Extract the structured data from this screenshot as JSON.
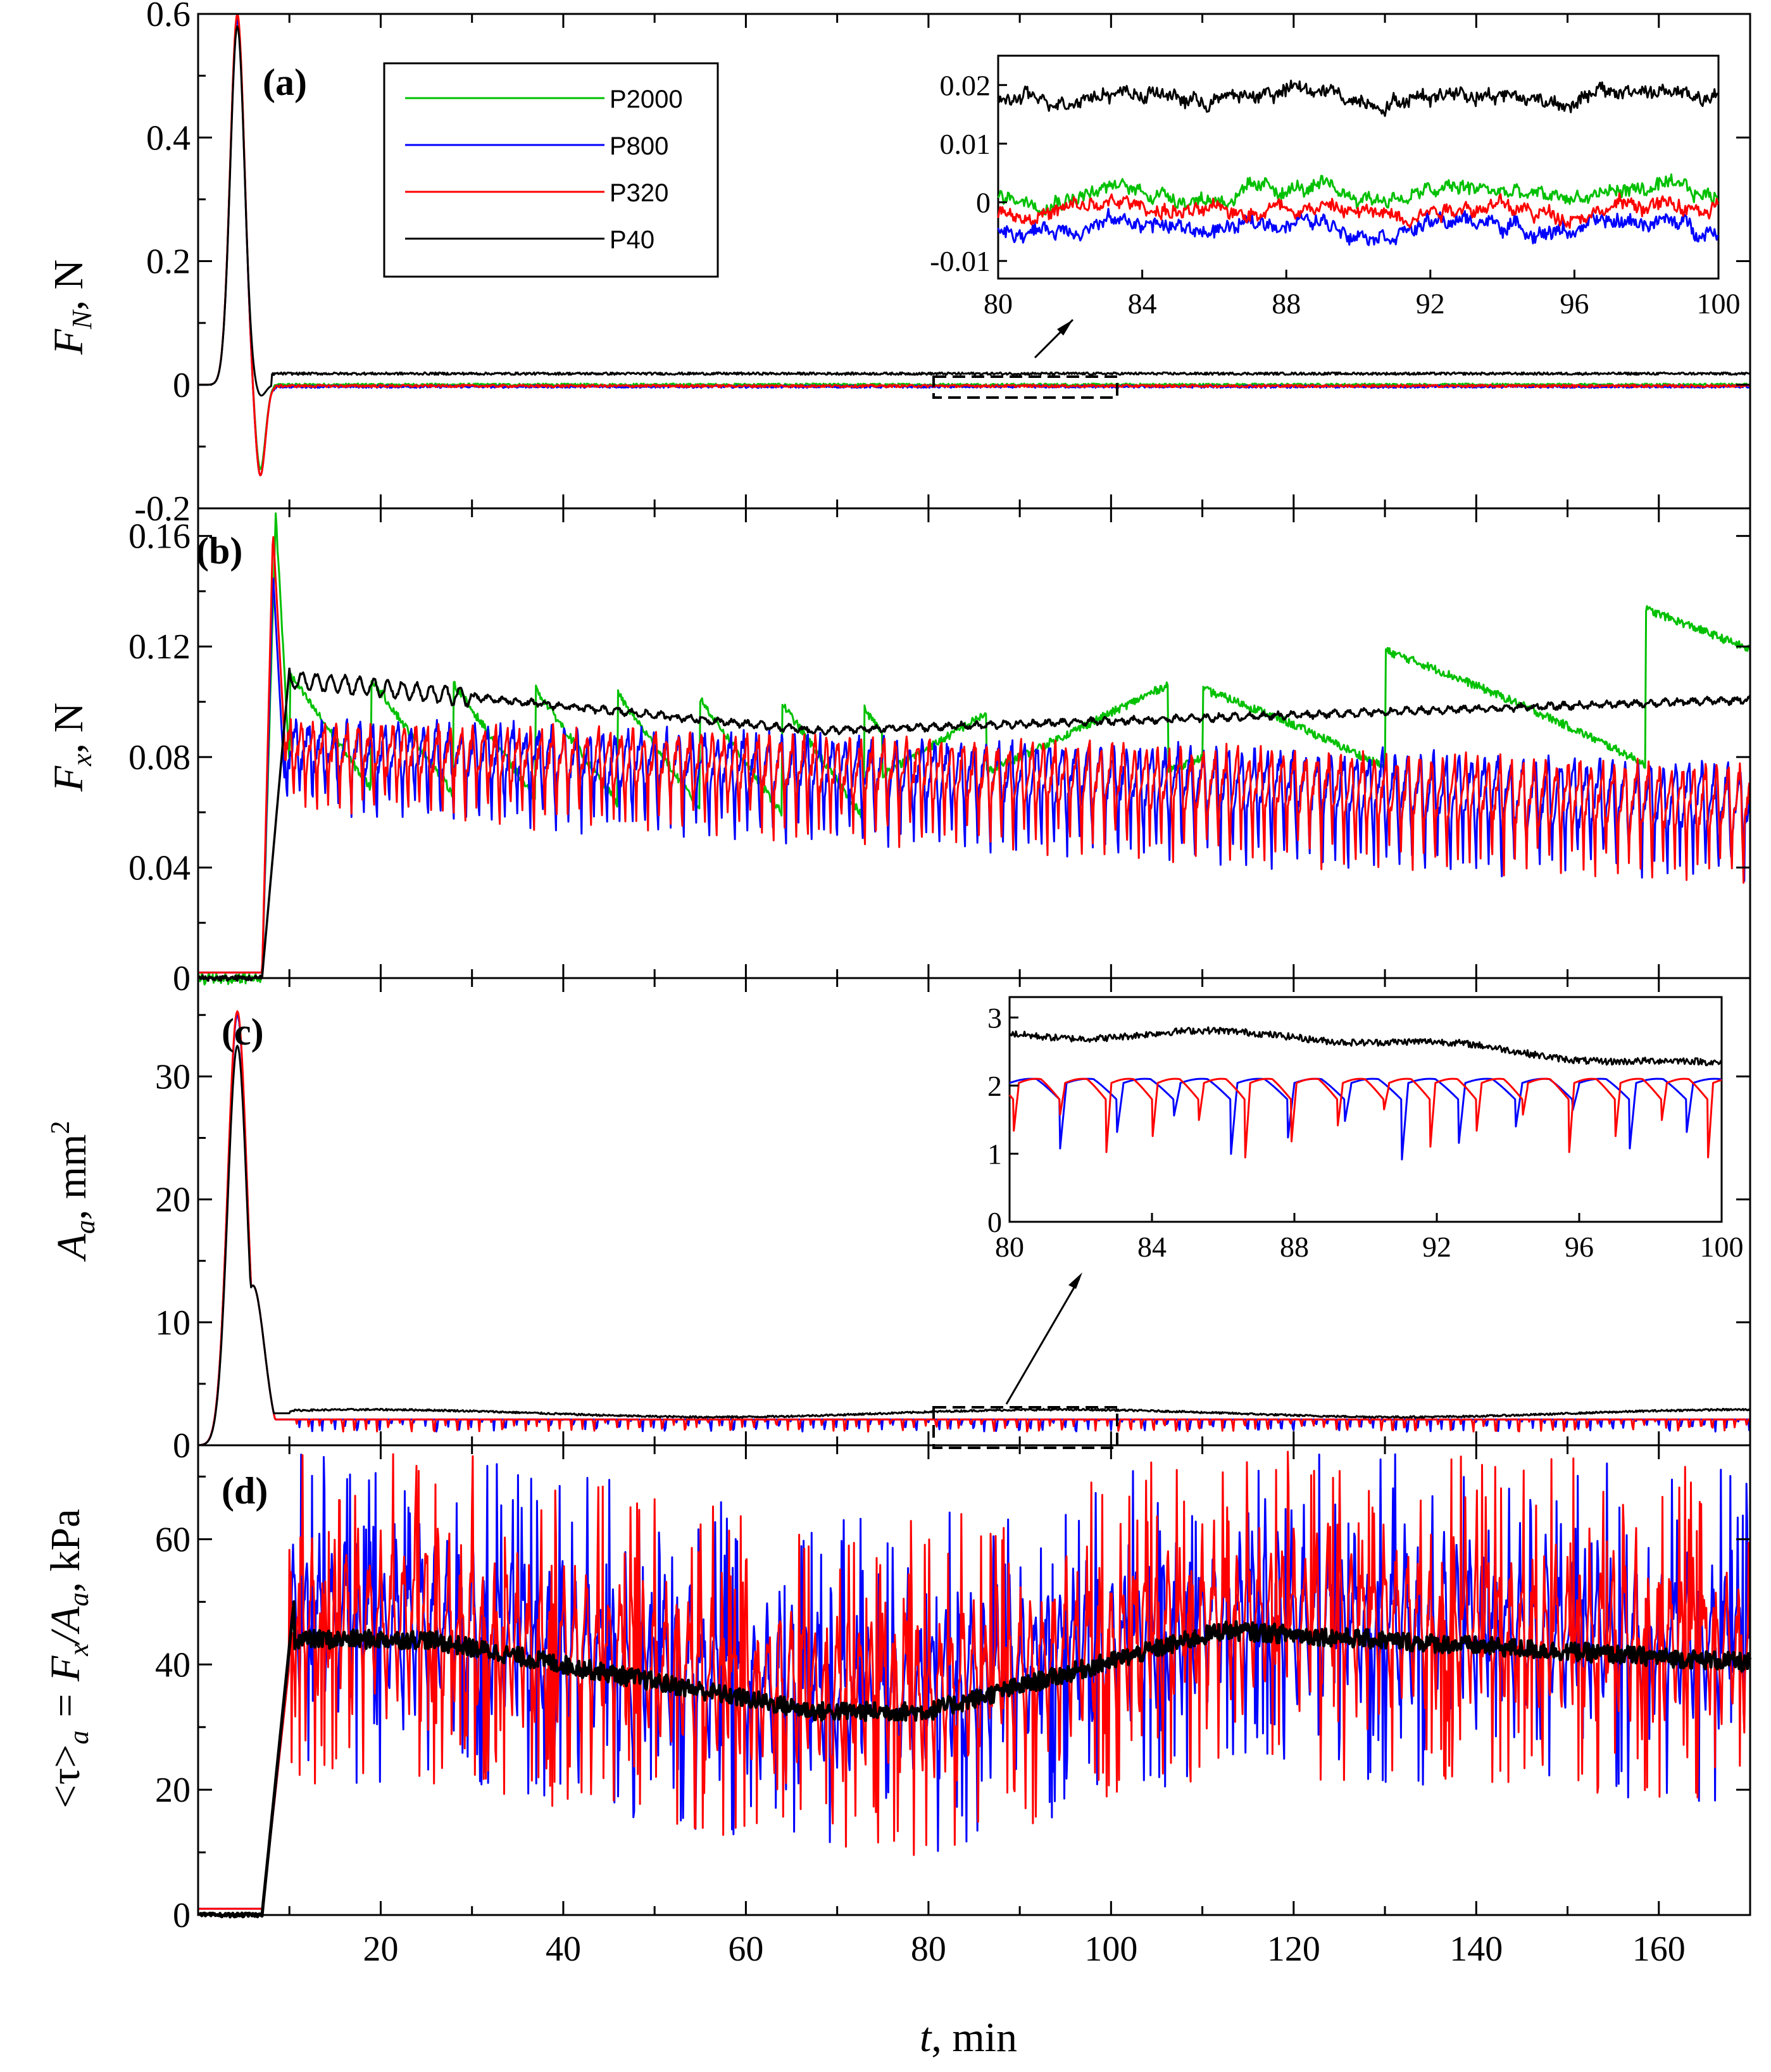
{
  "chart_data": [
    {
      "id": "a",
      "type": "line",
      "panel_label": "(a)",
      "ylabel_main": "F",
      "ylabel_sub": "N",
      "ylabel_unit": ", N",
      "ylim": [
        -0.2,
        0.6
      ],
      "yticks": [
        -0.2,
        0,
        0.2,
        0.4,
        0.6
      ],
      "ytick_labels": [
        "-0.2",
        "0",
        "0.2",
        "0.4",
        "0.6"
      ],
      "xlim": [
        0,
        170
      ],
      "series": [
        {
          "name": "P2000",
          "color": "#00c000",
          "level": 0.0,
          "peak": 0.595,
          "dip": -0.14
        },
        {
          "name": "P800",
          "color": "#0000ff",
          "level": -0.003,
          "peak": 0.59,
          "dip": -0.15
        },
        {
          "name": "P320",
          "color": "#ff0000",
          "level": -0.002,
          "peak": 0.6,
          "dip": -0.15
        },
        {
          "name": "P40",
          "color": "#000000",
          "level": 0.018,
          "peak": 0.58,
          "dip": -0.02
        }
      ],
      "inset": {
        "xlim": [
          80,
          100
        ],
        "ylim": [
          -0.013,
          0.025
        ],
        "xticks": [
          80,
          84,
          88,
          92,
          96,
          100
        ],
        "xtick_labels": [
          "80",
          "84",
          "88",
          "92",
          "96",
          "100"
        ],
        "yticks": [
          -0.01,
          0,
          0.01,
          0.02
        ],
        "ytick_labels": [
          "-0.01",
          "0",
          "0.01",
          "0.02"
        ]
      }
    },
    {
      "id": "b",
      "type": "line",
      "panel_label": "(b)",
      "ylabel_main": "F",
      "ylabel_sub": "x",
      "ylabel_unit": ", N",
      "ylim": [
        0,
        0.17
      ],
      "yticks": [
        0,
        0.04,
        0.08,
        0.12,
        0.16
      ],
      "ytick_labels": [
        "0",
        "0.04",
        "0.08",
        "0.12",
        "0.16"
      ],
      "xlim": [
        0,
        170
      ],
      "series": [
        {
          "name": "P2000",
          "color": "#00c000",
          "peak": 0.168
        },
        {
          "name": "P800",
          "color": "#0000ff",
          "peak": 0.147
        },
        {
          "name": "P320",
          "color": "#ff0000",
          "peak": 0.162
        },
        {
          "name": "P40",
          "color": "#000000",
          "peak": 0.112
        }
      ]
    },
    {
      "id": "c",
      "type": "line",
      "panel_label": "(c)",
      "ylabel_main": "A",
      "ylabel_sub": "a",
      "ylabel_unit": ", mm",
      "ylabel_sup": "2",
      "ylim": [
        0,
        38
      ],
      "yticks": [
        0,
        10,
        20,
        30
      ],
      "ytick_labels": [
        "0",
        "10",
        "20",
        "30"
      ],
      "xlim": [
        0,
        170
      ],
      "series": [
        {
          "name": "P800",
          "color": "#0000ff",
          "peak": 35
        },
        {
          "name": "P320",
          "color": "#ff0000",
          "peak": 35.3
        },
        {
          "name": "P40",
          "color": "#000000",
          "peak": 32.5
        }
      ],
      "inset": {
        "xlim": [
          80,
          100
        ],
        "ylim": [
          0,
          3.3
        ],
        "xticks": [
          80,
          84,
          88,
          92,
          96,
          100
        ],
        "xtick_labels": [
          "80",
          "84",
          "88",
          "92",
          "96",
          "100"
        ],
        "yticks": [
          0,
          1,
          2,
          3
        ],
        "ytick_labels": [
          "0",
          "1",
          "2",
          "3"
        ]
      }
    },
    {
      "id": "d",
      "type": "line",
      "panel_label": "(d)",
      "ylabel_text": "<τ>",
      "ylabel_sub": "a",
      "ylabel_mid": " = F",
      "ylabel_sub2": "x",
      "ylabel_mid2": "/A",
      "ylabel_sub3": "a",
      "ylabel_unit": ", kPa",
      "ylim": [
        0,
        75
      ],
      "yticks": [
        0,
        20,
        40,
        60
      ],
      "ytick_labels": [
        "0",
        "20",
        "40",
        "60"
      ],
      "xlim": [
        0,
        170
      ],
      "xticks": [
        20,
        40,
        60,
        80,
        100,
        120,
        140,
        160
      ],
      "xtick_labels": [
        "20",
        "40",
        "60",
        "80",
        "100",
        "120",
        "140",
        "160"
      ],
      "xlabel_main": "t",
      "xlabel_unit": ", min",
      "series": [
        {
          "name": "P800",
          "color": "#0000ff"
        },
        {
          "name": "P320",
          "color": "#ff0000"
        },
        {
          "name": "P40",
          "color": "#000000"
        }
      ]
    }
  ],
  "legend": [
    {
      "label": "P2000",
      "color": "#00c000"
    },
    {
      "label": "P800",
      "color": "#0000ff"
    },
    {
      "label": "P320",
      "color": "#ff0000"
    },
    {
      "label": "P40",
      "color": "#000000"
    }
  ]
}
